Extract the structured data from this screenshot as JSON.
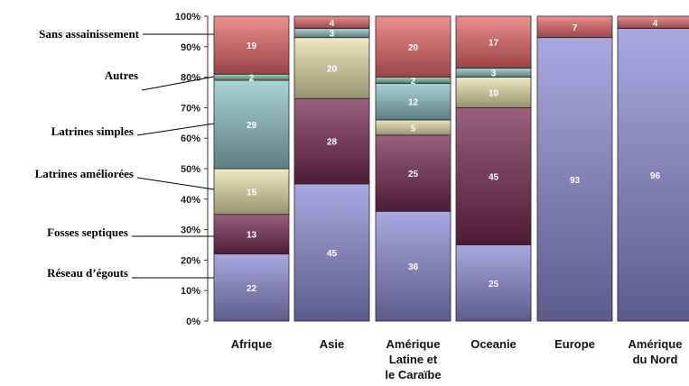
{
  "chart_data": {
    "type": "bar",
    "stacked": true,
    "percent": true,
    "categories": [
      [
        "Afrique"
      ],
      [
        "Asie"
      ],
      [
        "Amérique",
        "Latine et",
        "le Caraïbe"
      ],
      [
        "Oceanie"
      ],
      [
        "Europe"
      ],
      [
        "Amérique",
        "du Nord"
      ]
    ],
    "series": [
      {
        "name": "Réseau d’égouts",
        "color": "#8c8cd8",
        "values": [
          22,
          45,
          36,
          25,
          93,
          96
        ]
      },
      {
        "name": "Fosses septiques",
        "color": "#7a2a52",
        "values": [
          13,
          28,
          25,
          45,
          null,
          null
        ]
      },
      {
        "name": "Latrines améliorées",
        "color": "#e8e2a8",
        "values": [
          15,
          20,
          5,
          10,
          null,
          null
        ]
      },
      {
        "name": "Latrines simples",
        "color": "#8cc4c8",
        "values": [
          29,
          3,
          12,
          3,
          null,
          null
        ]
      },
      {
        "name": "Autres",
        "color": "#7fc4a0",
        "values": [
          2,
          null,
          2,
          null,
          null,
          null
        ]
      },
      {
        "name": "Sans assainissement",
        "color": "#e86a6a",
        "values": [
          19,
          4,
          20,
          17,
          7,
          4
        ]
      }
    ],
    "labels": [
      [
        "22",
        "45",
        "36",
        "25",
        "93",
        "96"
      ],
      [
        "13",
        "28",
        "25",
        "45",
        "",
        ""
      ],
      [
        "15",
        "20",
        "5",
        "10",
        "",
        ""
      ],
      [
        "29",
        "3",
        "12",
        "3",
        "",
        ""
      ],
      [
        "2",
        "",
        "2",
        "",
        "",
        ""
      ],
      [
        "19",
        "4",
        "20",
        "17",
        "7",
        "4"
      ]
    ],
    "yticks": [
      "0%",
      "10%",
      "20%",
      "30%",
      "40%",
      "50%",
      "60%",
      "70%",
      "80%",
      "90%",
      "100%"
    ],
    "ylim": [
      0,
      100
    ],
    "legend": "left"
  }
}
